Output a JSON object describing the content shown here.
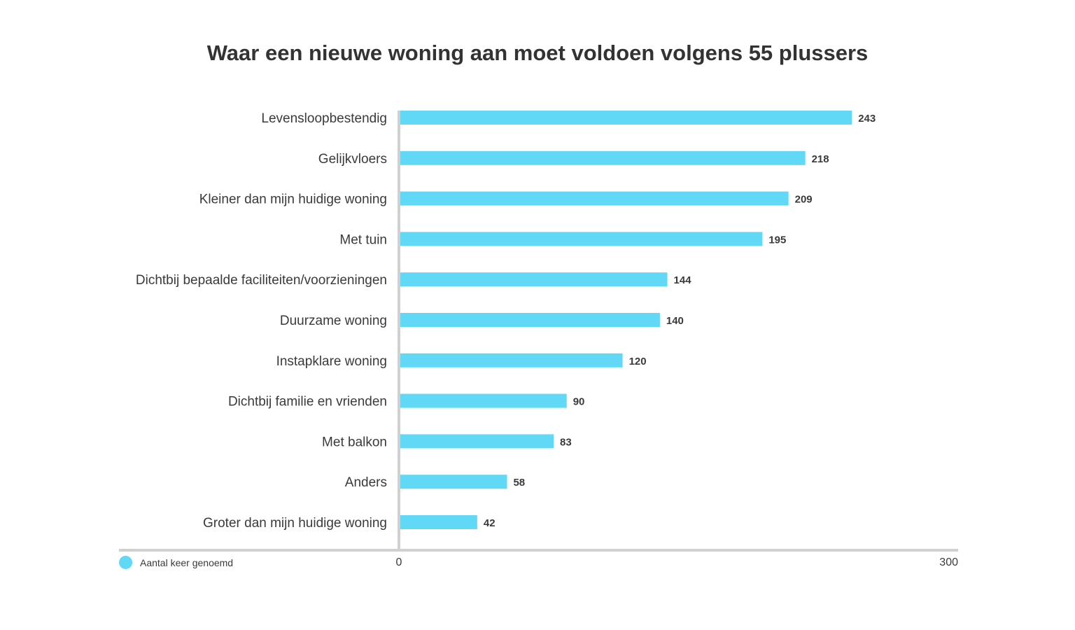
{
  "chart_data": {
    "type": "bar",
    "orientation": "horizontal",
    "title": "Waar een nieuwe woning aan moet voldoen volgens 55 plussers",
    "categories": [
      "Levensloopbestendig",
      "Gelijkvloers",
      "Kleiner dan mijn huidige woning",
      "Met tuin",
      "Dichtbij bepaalde faciliteiten/voorzieningen",
      "Duurzame woning",
      "Instapklare woning",
      "Dichtbij familie en vrienden",
      "Met balkon",
      "Anders",
      "Groter dan mijn huidige woning"
    ],
    "series": [
      {
        "name": "Aantal keer genoemd",
        "values": [
          243,
          218,
          209,
          195,
          144,
          140,
          120,
          90,
          83,
          58,
          42
        ]
      }
    ],
    "xlim": [
      0,
      300
    ],
    "x_ticks": [
      "0",
      "300"
    ],
    "data_labels": true,
    "grid": false,
    "legend_position": "bottom-left",
    "colors": {
      "bar": "#60d8f6",
      "axis": "#d0d0d0",
      "text": "#3a3a3a"
    }
  }
}
